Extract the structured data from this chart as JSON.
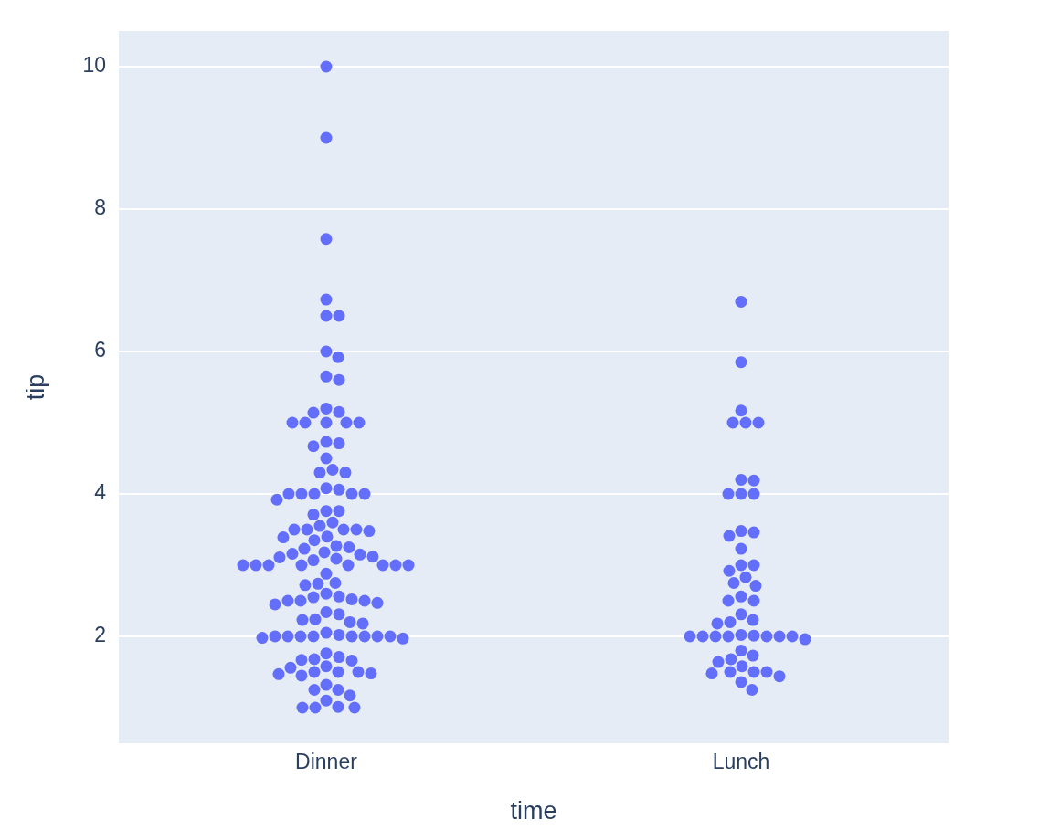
{
  "chart_data": {
    "type": "scatter",
    "xlabel": "time",
    "ylabel": "tip",
    "categories": [
      "Dinner",
      "Lunch"
    ],
    "ylim": [
      0.5,
      10.5
    ],
    "yticks": [
      2,
      4,
      6,
      8,
      10
    ],
    "grid": "y",
    "legend": false,
    "marker": "circle",
    "series": [
      {
        "color": "#636efa",
        "x": [
          "Dinner",
          "Dinner",
          "Dinner",
          "Dinner",
          "Dinner",
          "Dinner",
          "Dinner",
          "Dinner",
          "Dinner",
          "Dinner",
          "Dinner",
          "Dinner",
          "Dinner",
          "Dinner",
          "Dinner",
          "Dinner",
          "Dinner",
          "Dinner",
          "Dinner",
          "Dinner",
          "Dinner",
          "Dinner",
          "Dinner",
          "Dinner",
          "Dinner",
          "Dinner",
          "Dinner",
          "Dinner",
          "Dinner",
          "Dinner",
          "Dinner",
          "Dinner",
          "Dinner",
          "Dinner",
          "Dinner",
          "Dinner",
          "Dinner",
          "Dinner",
          "Dinner",
          "Dinner",
          "Dinner",
          "Dinner",
          "Dinner",
          "Dinner",
          "Dinner",
          "Dinner",
          "Dinner",
          "Dinner",
          "Dinner",
          "Dinner",
          "Dinner",
          "Dinner",
          "Dinner",
          "Dinner",
          "Dinner",
          "Dinner",
          "Dinner",
          "Dinner",
          "Dinner",
          "Dinner",
          "Dinner",
          "Dinner",
          "Dinner",
          "Dinner",
          "Dinner",
          "Dinner",
          "Dinner",
          "Dinner",
          "Dinner",
          "Dinner",
          "Dinner",
          "Dinner",
          "Dinner",
          "Dinner",
          "Dinner",
          "Dinner",
          "Dinner",
          "Dinner",
          "Dinner",
          "Dinner",
          "Dinner",
          "Dinner",
          "Dinner",
          "Dinner",
          "Dinner",
          "Dinner",
          "Dinner",
          "Dinner",
          "Dinner",
          "Dinner",
          "Dinner",
          "Dinner",
          "Dinner",
          "Dinner",
          "Dinner",
          "Dinner",
          "Dinner",
          "Dinner",
          "Dinner",
          "Dinner",
          "Dinner",
          "Dinner",
          "Dinner",
          "Dinner",
          "Dinner",
          "Dinner",
          "Dinner",
          "Dinner",
          "Dinner",
          "Dinner",
          "Dinner",
          "Dinner",
          "Dinner",
          "Dinner",
          "Dinner",
          "Dinner",
          "Dinner"
        ],
        "values": [
          10,
          9,
          7.58,
          6.73,
          6.5,
          6.5,
          6,
          5.92,
          5.65,
          5.6,
          5.2,
          5.15,
          5.14,
          5,
          5,
          5,
          5,
          5,
          4.73,
          4.71,
          4.67,
          4.5,
          4.34,
          4.3,
          4.3,
          4.08,
          4.06,
          4,
          4,
          4,
          4,
          4,
          3.92,
          3.76,
          3.76,
          3.71,
          3.6,
          3.55,
          3.5,
          3.5,
          3.5,
          3.5,
          3.48,
          3.4,
          3.39,
          3.35,
          3.27,
          3.25,
          3.23,
          3.18,
          3.16,
          3.15,
          3.12,
          3.11,
          3.09,
          3.07,
          3,
          3,
          3,
          3,
          3,
          3,
          3,
          3,
          2.88,
          2.75,
          2.74,
          2.72,
          2.6,
          2.56,
          2.55,
          2.52,
          2.5,
          2.5,
          2.5,
          2.47,
          2.45,
          2.34,
          2.31,
          2.24,
          2.23,
          2.2,
          2.18,
          2.05,
          2.02,
          2,
          2,
          2,
          2,
          2,
          2,
          2,
          2,
          1.98,
          1.97,
          1.76,
          1.71,
          1.68,
          1.67,
          1.66,
          1.58,
          1.56,
          1.5,
          1.5,
          1.5,
          1.48,
          1.47,
          1.45,
          1.32,
          1.25,
          1.25,
          1.17,
          1.1,
          1.01,
          1,
          1,
          1
        ]
      },
      {
        "color": "#636efa",
        "x": [
          "Lunch",
          "Lunch",
          "Lunch",
          "Lunch",
          "Lunch",
          "Lunch",
          "Lunch",
          "Lunch",
          "Lunch",
          "Lunch",
          "Lunch",
          "Lunch",
          "Lunch",
          "Lunch",
          "Lunch",
          "Lunch",
          "Lunch",
          "Lunch",
          "Lunch",
          "Lunch",
          "Lunch",
          "Lunch",
          "Lunch",
          "Lunch",
          "Lunch",
          "Lunch",
          "Lunch",
          "Lunch",
          "Lunch",
          "Lunch",
          "Lunch",
          "Lunch",
          "Lunch",
          "Lunch",
          "Lunch",
          "Lunch",
          "Lunch",
          "Lunch",
          "Lunch",
          "Lunch",
          "Lunch",
          "Lunch",
          "Lunch",
          "Lunch",
          "Lunch",
          "Lunch",
          "Lunch",
          "Lunch",
          "Lunch",
          "Lunch"
        ],
        "values": [
          6.7,
          5.85,
          5.17,
          5,
          5,
          5,
          4.2,
          4.19,
          4,
          4,
          4,
          3.48,
          3.46,
          3.41,
          3.23,
          3,
          3,
          2.92,
          2.83,
          2.75,
          2.71,
          2.56,
          2.5,
          2.5,
          2.31,
          2.23,
          2.2,
          2.18,
          2.02,
          2.01,
          2,
          2,
          2,
          2,
          2,
          2,
          2,
          1.96,
          1.8,
          1.73,
          1.68,
          1.64,
          1.58,
          1.5,
          1.5,
          1.5,
          1.48,
          1.44,
          1.36,
          1.25
        ]
      }
    ]
  }
}
